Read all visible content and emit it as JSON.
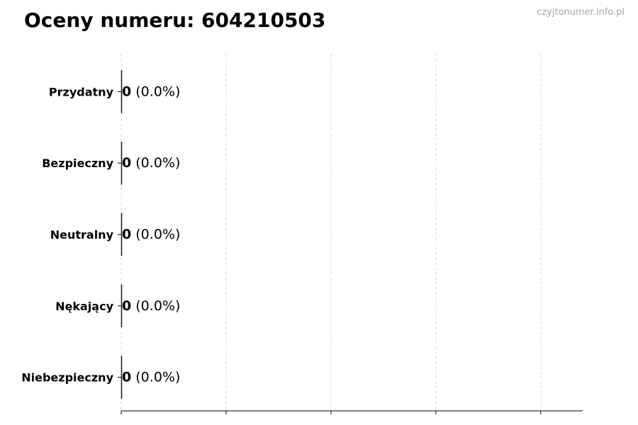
{
  "header": {
    "title": "Oceny numeru: 604210503",
    "watermark": "czyjtonumer.info.pl"
  },
  "chart_data": {
    "type": "bar",
    "orientation": "horizontal",
    "title": "Oceny numeru: 604210503",
    "categories": [
      "Przydatny",
      "Bezpieczny",
      "Neutralny",
      "Nękający",
      "Niebezpieczny"
    ],
    "values": [
      0,
      0,
      0,
      0,
      0
    ],
    "data_labels": [
      "0 (0.0%)",
      "0 (0.0%)",
      "0 (0.0%)",
      "0 (0.0%)",
      "0 (0.0%)"
    ],
    "label_counts": [
      "0",
      "0",
      "0",
      "0",
      "0"
    ],
    "label_percents": [
      "(0.0%)",
      "(0.0%)",
      "(0.0%)",
      "(0.0%)",
      "(0.0%)"
    ],
    "xlim": [
      0,
      4.4
    ],
    "xticks": [
      0,
      1,
      2,
      3,
      4
    ],
    "xtick_labels_shown": false,
    "grid": "x, dashed",
    "colors": {
      "bar_edge": "#000000",
      "grid": "#d9d9d9",
      "watermark": "#a6a6a6"
    }
  }
}
